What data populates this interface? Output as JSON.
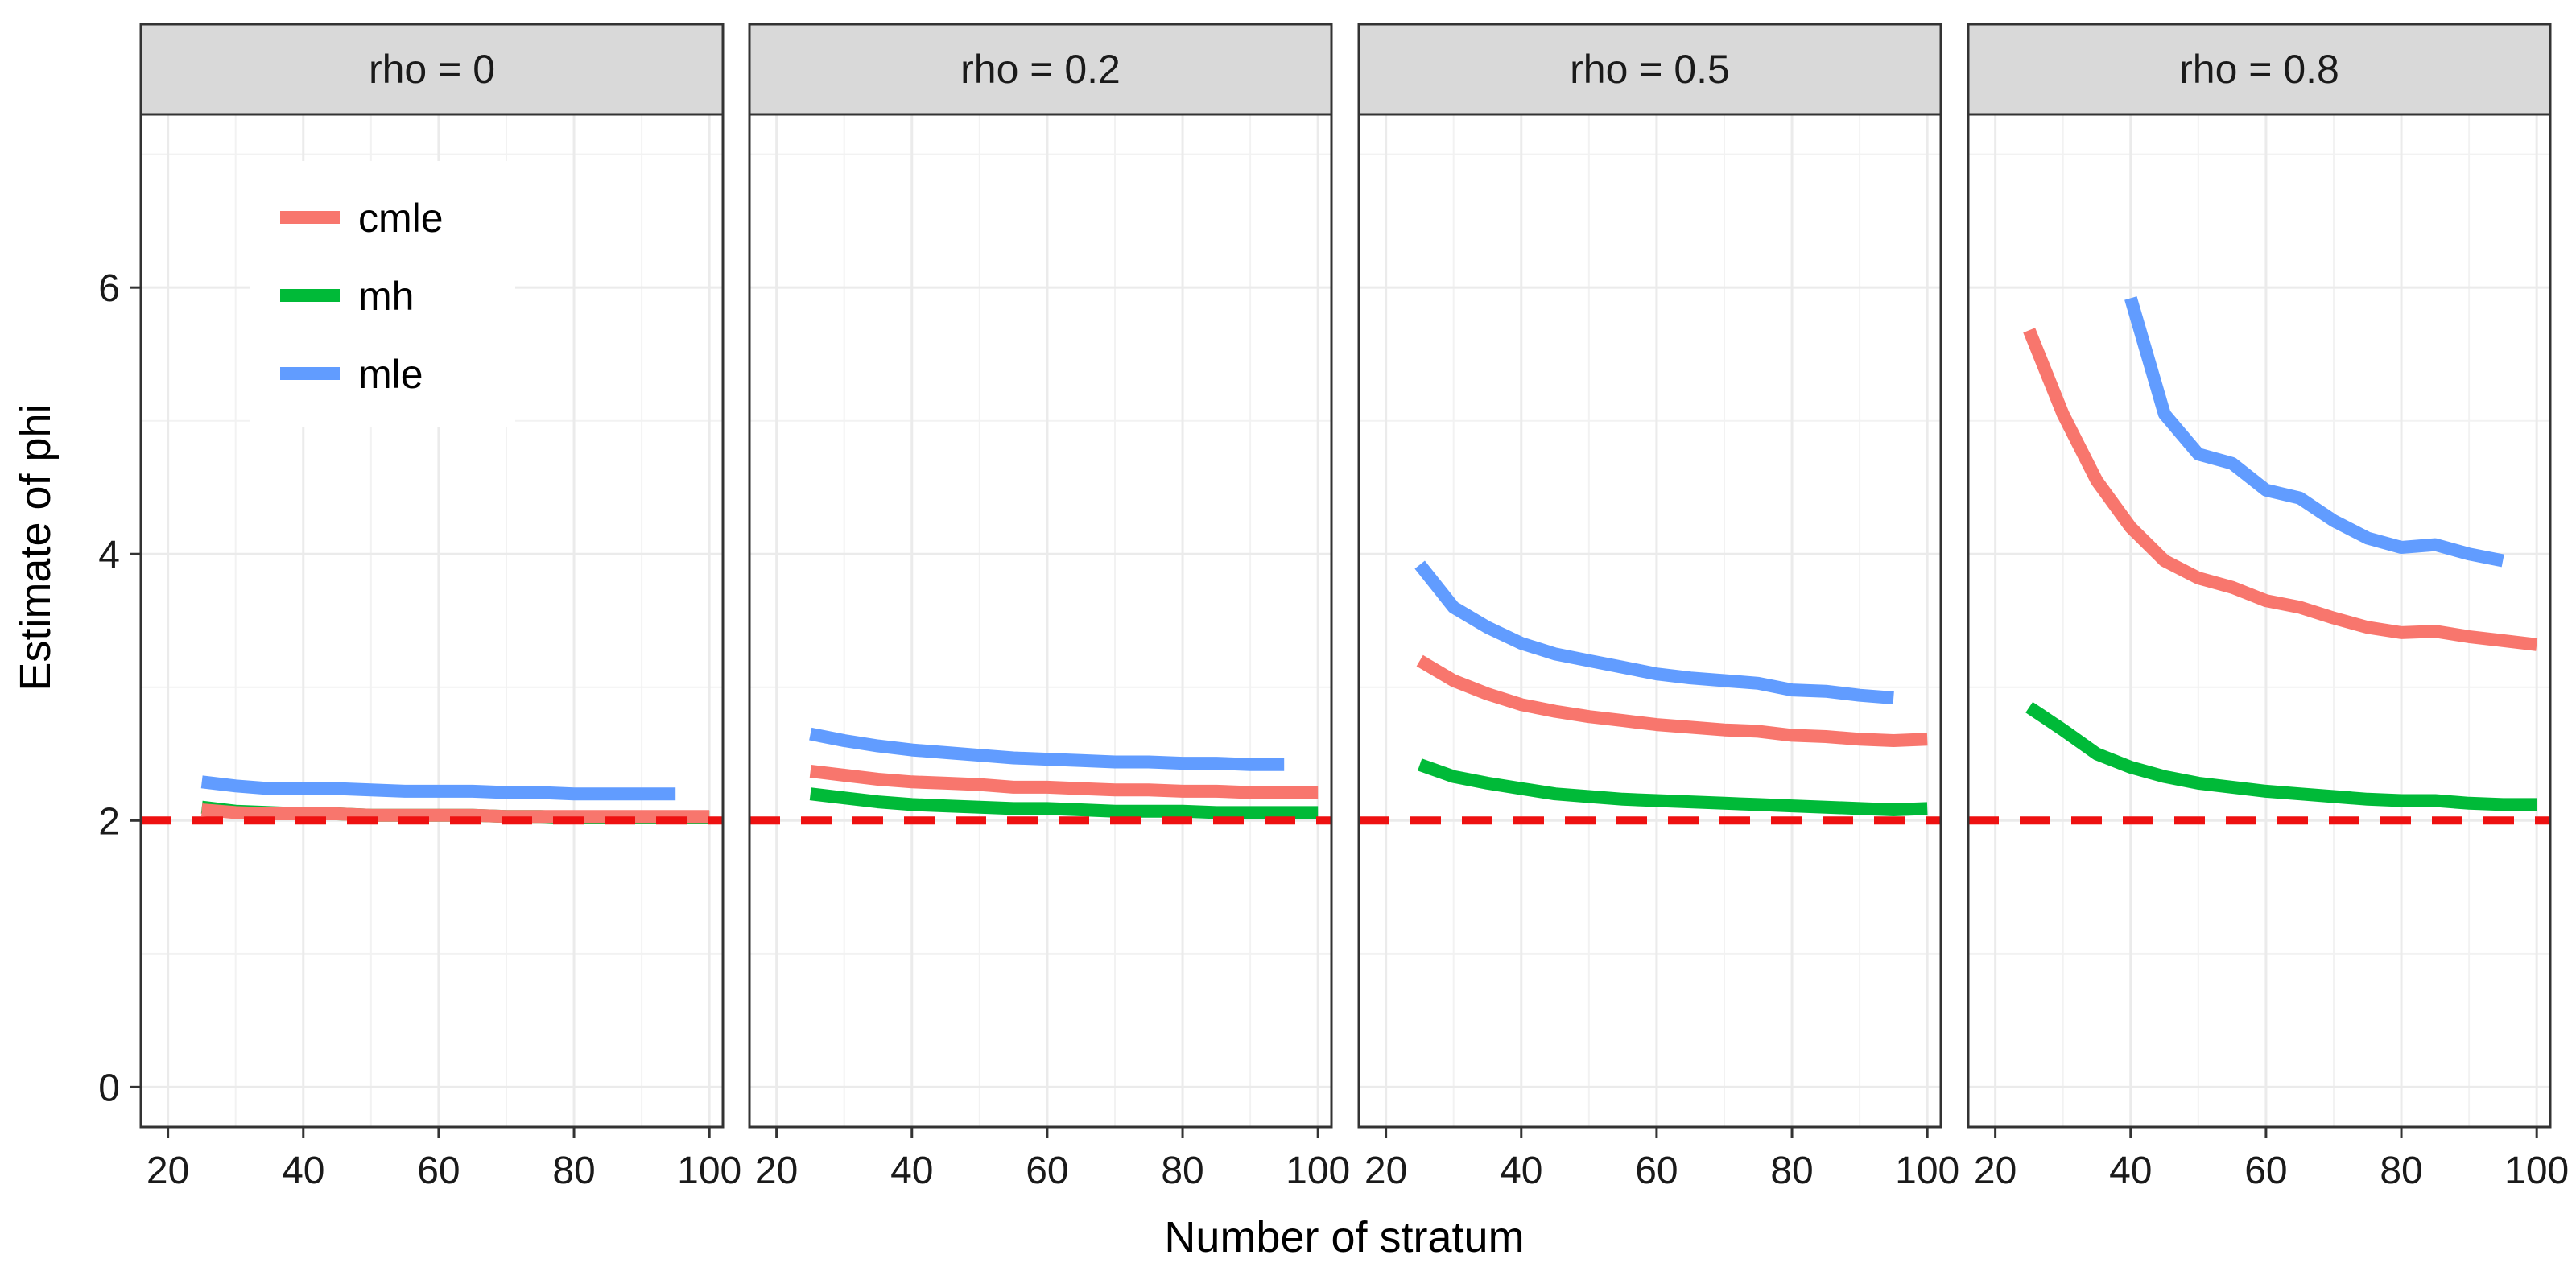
{
  "chart_data": {
    "type": "line",
    "xlabel": "Number of stratum",
    "ylabel": "Estimate of phi",
    "xlim": [
      16,
      102
    ],
    "ylim": [
      -0.3,
      7.3
    ],
    "xticks": [
      20,
      40,
      60,
      80,
      100
    ],
    "yticks": [
      0,
      2,
      4,
      6
    ],
    "xtick_labels": [
      "20",
      "40",
      "60",
      "80",
      "100"
    ],
    "ytick_labels": [
      "0",
      "2",
      "4",
      "6"
    ],
    "grid": true,
    "legend": {
      "position": "top-left inside first panel",
      "entries": [
        "cmle",
        "mh",
        "mle"
      ]
    },
    "series_colors": {
      "cmle": "#F8766D",
      "mh": "#00BA38",
      "mle": "#619CFF"
    },
    "reference_line": {
      "y": 2,
      "color": "#EE1111",
      "style": "dashed"
    },
    "panels": [
      {
        "label": "rho = 0",
        "series": [
          {
            "name": "cmle",
            "x": [
              25,
              30,
              35,
              40,
              45,
              50,
              55,
              60,
              65,
              70,
              75,
              80,
              85,
              90,
              95,
              100
            ],
            "y": [
              2.08,
              2.06,
              2.05,
              2.05,
              2.05,
              2.04,
              2.04,
              2.04,
              2.04,
              2.03,
              2.03,
              2.03,
              2.03,
              2.03,
              2.03,
              2.03
            ]
          },
          {
            "name": "mh",
            "x": [
              25,
              30,
              35,
              40,
              45,
              50,
              55,
              60,
              65,
              70,
              75,
              80,
              85,
              90,
              95,
              100
            ],
            "y": [
              2.1,
              2.07,
              2.06,
              2.05,
              2.05,
              2.04,
              2.04,
              2.04,
              2.04,
              2.03,
              2.03,
              2.02,
              2.02,
              2.02,
              2.02,
              2.02
            ]
          },
          {
            "name": "mle",
            "x": [
              25,
              30,
              35,
              40,
              45,
              50,
              55,
              60,
              65,
              70,
              75,
              80,
              85,
              90,
              95
            ],
            "y": [
              2.29,
              2.26,
              2.24,
              2.24,
              2.24,
              2.23,
              2.22,
              2.22,
              2.22,
              2.21,
              2.21,
              2.2,
              2.2,
              2.2,
              2.2
            ]
          }
        ]
      },
      {
        "label": "rho = 0.2",
        "series": [
          {
            "name": "cmle",
            "x": [
              25,
              30,
              35,
              40,
              45,
              50,
              55,
              60,
              65,
              70,
              75,
              80,
              85,
              90,
              95,
              100
            ],
            "y": [
              2.37,
              2.34,
              2.31,
              2.29,
              2.28,
              2.27,
              2.25,
              2.25,
              2.24,
              2.23,
              2.23,
              2.22,
              2.22,
              2.21,
              2.21,
              2.21
            ]
          },
          {
            "name": "mh",
            "x": [
              25,
              30,
              35,
              40,
              45,
              50,
              55,
              60,
              65,
              70,
              75,
              80,
              85,
              90,
              95,
              100
            ],
            "y": [
              2.2,
              2.17,
              2.14,
              2.12,
              2.11,
              2.1,
              2.09,
              2.09,
              2.08,
              2.07,
              2.07,
              2.07,
              2.06,
              2.06,
              2.06,
              2.06
            ]
          },
          {
            "name": "mle",
            "x": [
              25,
              30,
              35,
              40,
              45,
              50,
              55,
              60,
              65,
              70,
              75,
              80,
              85,
              90,
              95
            ],
            "y": [
              2.65,
              2.6,
              2.56,
              2.53,
              2.51,
              2.49,
              2.47,
              2.46,
              2.45,
              2.44,
              2.44,
              2.43,
              2.43,
              2.42,
              2.42
            ]
          }
        ]
      },
      {
        "label": "rho = 0.5",
        "series": [
          {
            "name": "cmle",
            "x": [
              25,
              30,
              35,
              40,
              45,
              50,
              55,
              60,
              65,
              70,
              75,
              80,
              85,
              90,
              95,
              100
            ],
            "y": [
              3.2,
              3.05,
              2.95,
              2.87,
              2.82,
              2.78,
              2.75,
              2.72,
              2.7,
              2.68,
              2.67,
              2.64,
              2.63,
              2.61,
              2.6,
              2.61
            ]
          },
          {
            "name": "mh",
            "x": [
              25,
              30,
              35,
              40,
              45,
              50,
              55,
              60,
              65,
              70,
              75,
              80,
              85,
              90,
              95,
              100
            ],
            "y": [
              2.42,
              2.33,
              2.28,
              2.24,
              2.2,
              2.18,
              2.16,
              2.15,
              2.14,
              2.13,
              2.12,
              2.11,
              2.1,
              2.09,
              2.08,
              2.09
            ]
          },
          {
            "name": "mle",
            "x": [
              25,
              30,
              35,
              40,
              45,
              50,
              55,
              60,
              65,
              70,
              75,
              80,
              85,
              90,
              95
            ],
            "y": [
              3.92,
              3.6,
              3.45,
              3.33,
              3.25,
              3.2,
              3.15,
              3.1,
              3.07,
              3.05,
              3.03,
              2.98,
              2.97,
              2.94,
              2.92
            ]
          }
        ]
      },
      {
        "label": "rho = 0.8",
        "series": [
          {
            "name": "cmle",
            "x": [
              25,
              30,
              35,
              40,
              45,
              50,
              55,
              60,
              65,
              70,
              75,
              80,
              85,
              90,
              95,
              100
            ],
            "y": [
              5.68,
              5.05,
              4.55,
              4.2,
              3.95,
              3.82,
              3.75,
              3.65,
              3.6,
              3.52,
              3.45,
              3.41,
              3.42,
              3.38,
              3.35,
              3.32
            ]
          },
          {
            "name": "mh",
            "x": [
              25,
              30,
              35,
              40,
              45,
              50,
              55,
              60,
              65,
              70,
              75,
              80,
              85,
              90,
              95,
              100
            ],
            "y": [
              2.85,
              2.68,
              2.5,
              2.4,
              2.33,
              2.28,
              2.25,
              2.22,
              2.2,
              2.18,
              2.16,
              2.15,
              2.15,
              2.13,
              2.12,
              2.12
            ]
          },
          {
            "name": "mle",
            "x": [
              40,
              45,
              50,
              55,
              60,
              65,
              70,
              75,
              80,
              85,
              90,
              95
            ],
            "y": [
              5.92,
              5.05,
              4.75,
              4.68,
              4.48,
              4.42,
              4.25,
              4.12,
              4.05,
              4.07,
              4.0,
              3.95
            ]
          }
        ]
      }
    ]
  }
}
